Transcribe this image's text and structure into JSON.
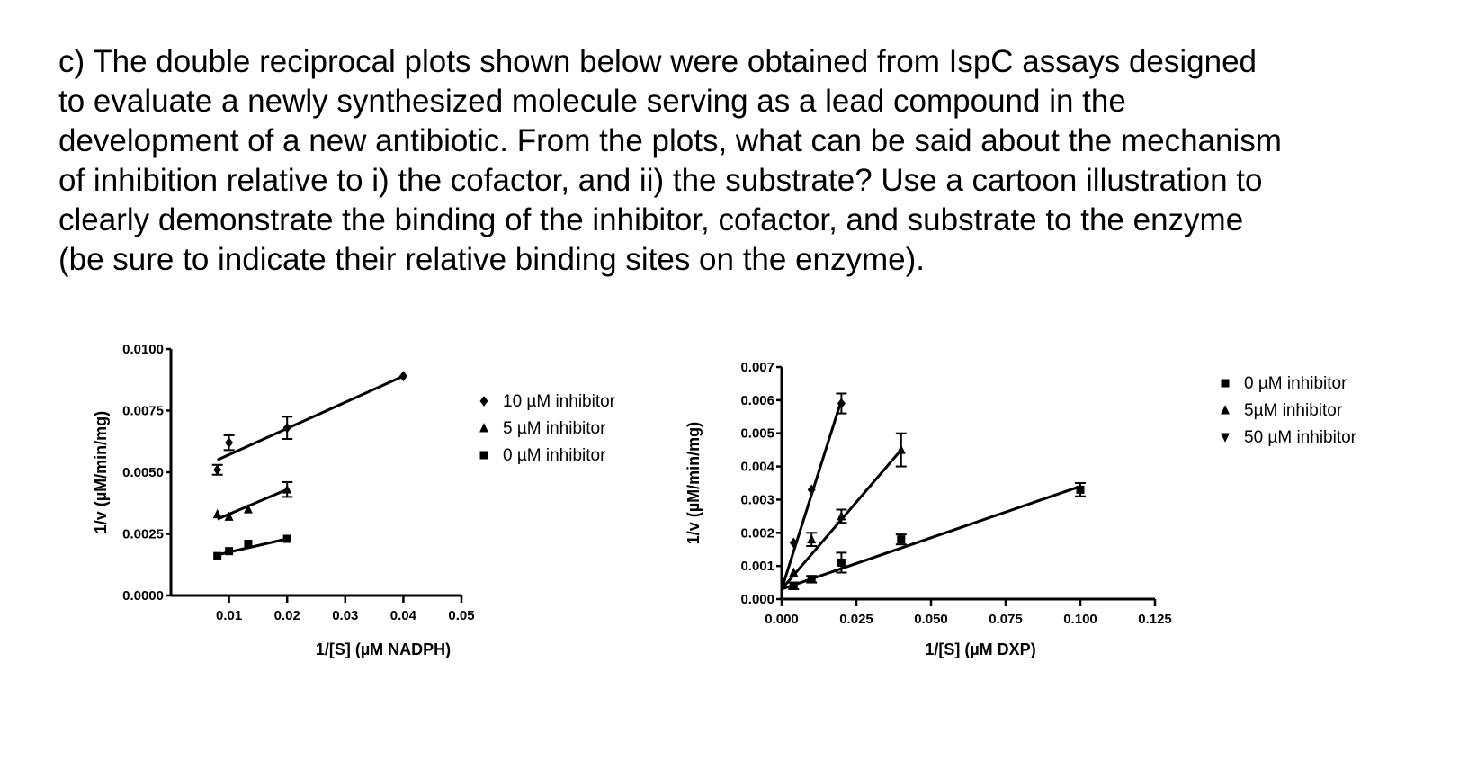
{
  "question": {
    "lines": [
      "c) The double reciprocal plots shown below were obtained from IspC assays designed",
      "to evaluate a newly synthesized molecule serving as a lead compound in the",
      "development of a new antibiotic. From the plots, what can be said about the mechanism",
      "of inhibition relative to i) the cofactor, and ii) the substrate? Use a cartoon illustration to",
      "clearly demonstrate the binding of the inhibitor, cofactor, and substrate to the enzyme",
      "(be sure to indicate their relative binding sites on the enzyme)."
    ]
  },
  "chart_data": [
    {
      "type": "scatter",
      "xlabel": "1/[S] (µM NADPH)",
      "ylabel": "1/v (µM/min/mg)",
      "xlim": [
        0,
        0.05
      ],
      "ylim": [
        0,
        0.01
      ],
      "xticks": [
        "0.01",
        "0.02",
        "0.03",
        "0.04",
        "0.05"
      ],
      "xtick_values": [
        0.01,
        0.02,
        0.03,
        0.04,
        0.05
      ],
      "yticks": [
        "0.0000",
        "0.0025",
        "0.0050",
        "0.0075",
        "0.0100"
      ],
      "ytick_values": [
        0,
        0.0025,
        0.005,
        0.0075,
        0.01
      ],
      "grid": false,
      "legend": "right",
      "series": [
        {
          "name": "10 µM inhibitor",
          "marker": "diamond",
          "x": [
            0.008,
            0.01,
            0.02,
            0.04
          ],
          "y": [
            0.0051,
            0.0062,
            0.0068,
            0.0089
          ],
          "err": [
            0.0002,
            0.0003,
            0.00045,
            0
          ],
          "fit": [
            [
              0.008,
              0.0055
            ],
            [
              0.04,
              0.0089
            ]
          ]
        },
        {
          "name": "5 µM inhibitor",
          "marker": "triangle-up",
          "x": [
            0.008,
            0.01,
            0.0133,
            0.02
          ],
          "y": [
            0.0033,
            0.0032,
            0.0035,
            0.0043
          ],
          "err": [
            0,
            0,
            0,
            0.0003
          ],
          "fit": [
            [
              0.008,
              0.0031
            ],
            [
              0.02,
              0.0043
            ]
          ]
        },
        {
          "name": "0 µM inhibitor",
          "marker": "square",
          "x": [
            0.008,
            0.01,
            0.0133,
            0.02
          ],
          "y": [
            0.0016,
            0.0018,
            0.0021,
            0.0023
          ],
          "err": [
            0,
            0,
            0,
            0
          ],
          "fit": [
            [
              0.008,
              0.00165
            ],
            [
              0.02,
              0.0023
            ]
          ]
        }
      ]
    },
    {
      "type": "scatter",
      "xlabel": "1/[S] (µM DXP)",
      "ylabel": "1/v (µM/min/mg)",
      "xlim": [
        0,
        0.125
      ],
      "ylim": [
        0,
        0.007
      ],
      "xticks": [
        "0.000",
        "0.025",
        "0.050",
        "0.075",
        "0.100",
        "0.125"
      ],
      "xtick_values": [
        0,
        0.025,
        0.05,
        0.075,
        0.1,
        0.125
      ],
      "yticks": [
        "0.000",
        "0.001",
        "0.002",
        "0.003",
        "0.004",
        "0.005",
        "0.006",
        "0.007"
      ],
      "ytick_values": [
        0,
        0.001,
        0.002,
        0.003,
        0.004,
        0.005,
        0.006,
        0.007
      ],
      "grid": false,
      "legend": "right",
      "series": [
        {
          "name": "0 µM inhibitor",
          "marker": "square",
          "x": [
            0.004,
            0.01,
            0.02,
            0.04,
            0.1
          ],
          "y": [
            0.0004,
            0.0006,
            0.0011,
            0.0018,
            0.0033
          ],
          "err": [
            0.0001,
            0.0001,
            0.0003,
            0.00015,
            0.0002
          ],
          "fit": [
            [
              0,
              0.0003
            ],
            [
              0.1,
              0.0034
            ]
          ]
        },
        {
          "name": "5µM inhibitor",
          "marker": "triangle-up",
          "x": [
            0.004,
            0.01,
            0.02,
            0.04
          ],
          "y": [
            0.0008,
            0.0018,
            0.0025,
            0.0045
          ],
          "err": [
            0,
            0.0002,
            0.0002,
            0.0005
          ],
          "fit": [
            [
              0,
              0.0003
            ],
            [
              0.04,
              0.0045
            ]
          ]
        },
        {
          "name": "50 µM inhibitor",
          "marker": "triangle-down",
          "plot_marker": "diamond",
          "x": [
            0.004,
            0.01,
            0.02
          ],
          "y": [
            0.0017,
            0.0033,
            0.0059
          ],
          "err": [
            0,
            0,
            0.0003
          ],
          "fit": [
            [
              0,
              0.0003
            ],
            [
              0.02,
              0.006
            ]
          ]
        }
      ]
    }
  ]
}
